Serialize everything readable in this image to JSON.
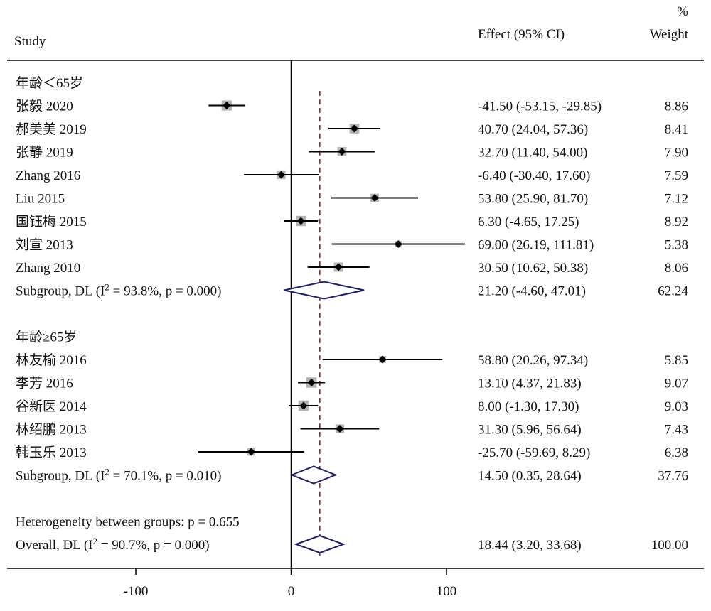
{
  "headers": {
    "study": "Study",
    "effect": "Effect (95% CI)",
    "weight_pct": "%",
    "weight": "Weight"
  },
  "colors": {
    "diamond": "#1f1f6e",
    "ref_line": "#8b2a2a",
    "box": "#b5b5b5",
    "ci": "#000000"
  },
  "chart_data": {
    "type": "forest",
    "xlim": [
      -180,
      260
    ],
    "xticks": [
      -100,
      0,
      100
    ],
    "xtick_labels": [
      "-100",
      "0",
      "100"
    ],
    "overall_effect": 18.44,
    "rows": [
      {
        "kind": "group",
        "label": "年龄＜65岁"
      },
      {
        "kind": "study",
        "label": "张毅 2020",
        "est": -41.5,
        "lo": -53.15,
        "hi": -29.85,
        "ci_text": "-41.50 (-53.15, -29.85)",
        "weight": "8.86",
        "w": 8.86
      },
      {
        "kind": "study",
        "label": "郝美美 2019",
        "est": 40.7,
        "lo": 24.04,
        "hi": 57.36,
        "ci_text": "40.70 (24.04, 57.36)",
        "weight": "8.41",
        "w": 8.41
      },
      {
        "kind": "study",
        "label": "张静 2019",
        "est": 32.7,
        "lo": 11.4,
        "hi": 54.0,
        "ci_text": "32.70 (11.40, 54.00)",
        "weight": "7.90",
        "w": 7.9
      },
      {
        "kind": "study",
        "label": "Zhang  2016",
        "est": -6.4,
        "lo": -30.4,
        "hi": 17.6,
        "ci_text": "-6.40 (-30.40, 17.60)",
        "weight": "7.59",
        "w": 7.59
      },
      {
        "kind": "study",
        "label": "Liu 2015",
        "est": 53.8,
        "lo": 25.9,
        "hi": 81.7,
        "ci_text": "53.80 (25.90, 81.70)",
        "weight": "7.12",
        "w": 7.12
      },
      {
        "kind": "study",
        "label": "国钰梅 2015",
        "est": 6.3,
        "lo": -4.65,
        "hi": 17.25,
        "ci_text": "6.30 (-4.65, 17.25)",
        "weight": "8.92",
        "w": 8.92
      },
      {
        "kind": "study",
        "label": "刘宣 2013",
        "est": 69.0,
        "lo": 26.19,
        "hi": 111.81,
        "ci_text": "69.00 (26.19, 111.81)",
        "weight": "5.38",
        "w": 5.38
      },
      {
        "kind": "study",
        "label": "Zhang  2010",
        "est": 30.5,
        "lo": 10.62,
        "hi": 50.38,
        "ci_text": "30.50 (10.62, 50.38)",
        "weight": "8.06",
        "w": 8.06
      },
      {
        "kind": "subgroup",
        "label_main": "Subgroup, DL (I",
        "label_sup": "2",
        "label_rest": " = 93.8%, p = 0.000)",
        "est": 21.2,
        "lo": -4.6,
        "hi": 47.01,
        "ci_text": "21.20 (-4.60, 47.01)",
        "weight": "62.24"
      },
      {
        "kind": "blank"
      },
      {
        "kind": "group",
        "label": "年龄≥65岁"
      },
      {
        "kind": "study",
        "label": "林友榆 2016",
        "est": 58.8,
        "lo": 20.26,
        "hi": 97.34,
        "ci_text": "58.80 (20.26, 97.34)",
        "weight": "5.85",
        "w": 5.85
      },
      {
        "kind": "study",
        "label": "李芳 2016",
        "est": 13.1,
        "lo": 4.37,
        "hi": 21.83,
        "ci_text": "13.10 (4.37, 21.83)",
        "weight": "9.07",
        "w": 9.07
      },
      {
        "kind": "study",
        "label": "谷新医 2014",
        "est": 8.0,
        "lo": -1.3,
        "hi": 17.3,
        "ci_text": "8.00 (-1.30, 17.30)",
        "weight": "9.03",
        "w": 9.03
      },
      {
        "kind": "study",
        "label": "林绍鹏 2013",
        "est": 31.3,
        "lo": 5.96,
        "hi": 56.64,
        "ci_text": "31.30 (5.96, 56.64)",
        "weight": "7.43",
        "w": 7.43
      },
      {
        "kind": "study",
        "label": "韩玉乐 2013",
        "est": -25.7,
        "lo": -59.69,
        "hi": 8.29,
        "ci_text": "-25.70 (-59.69, 8.29)",
        "weight": "6.38",
        "w": 6.38
      },
      {
        "kind": "subgroup",
        "label_main": "Subgroup, DL (I",
        "label_sup": "2",
        "label_rest": " = 70.1%, p = 0.010)",
        "est": 14.5,
        "lo": 0.35,
        "hi": 28.64,
        "ci_text": "14.50 (0.35, 28.64)",
        "weight": "37.76"
      },
      {
        "kind": "blank"
      },
      {
        "kind": "note",
        "label": "Heterogeneity between groups: p = 0.655"
      },
      {
        "kind": "overall",
        "label_main": "Overall, DL (I",
        "label_sup": "2",
        "label_rest": " = 90.7%, p = 0.000)",
        "est": 18.44,
        "lo": 3.2,
        "hi": 33.68,
        "ci_text": "18.44 (3.20, 33.68)",
        "weight": "100.00"
      }
    ]
  }
}
